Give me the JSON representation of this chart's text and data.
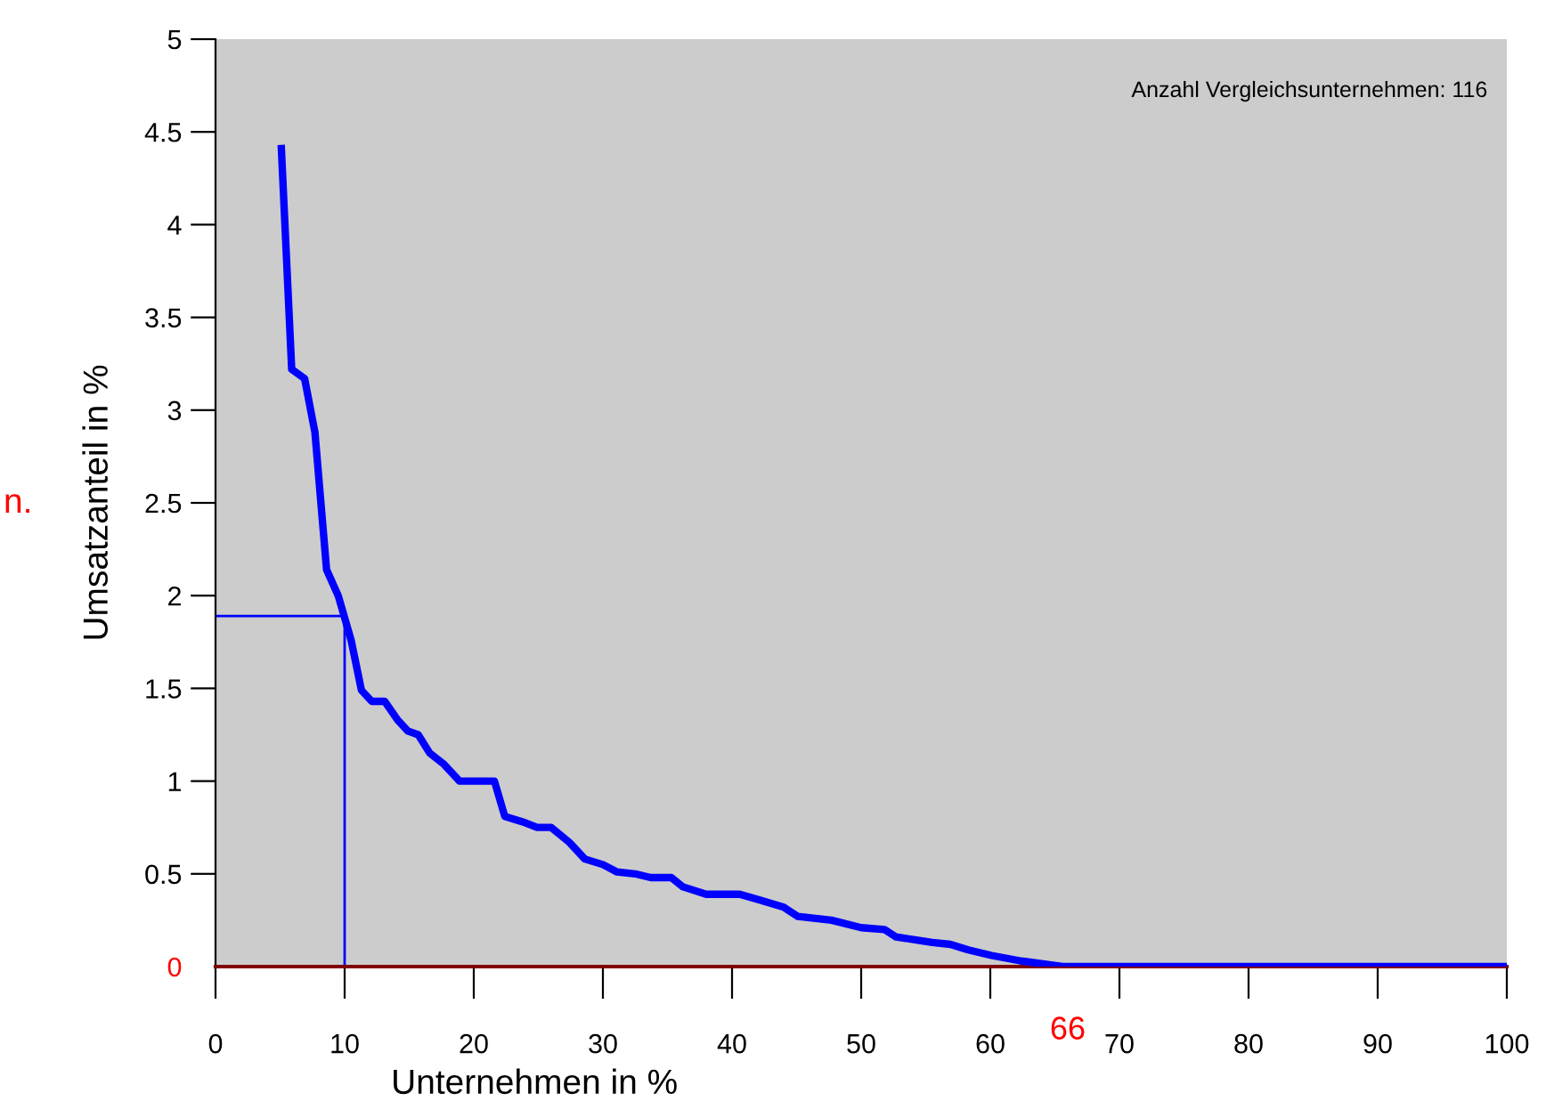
{
  "chart_data": {
    "type": "line",
    "xlabel": "Unternehmen in %",
    "ylabel": "Umsatzanteil in %",
    "annotations": [
      "Anzahl Vergleichsunternehmen: 116",
      "n.",
      {
        "text": "66",
        "x": 66,
        "y": 0
      }
    ],
    "series": [
      {
        "color": "#0000ff",
        "x": [
          5.1,
          5.9,
          6.9,
          7.7,
          8.6,
          9.5,
          10.0,
          10.5,
          11.3,
          12.1,
          13.1,
          14.1,
          14.9,
          15.7,
          16.6,
          17.7,
          18.9,
          21.6,
          22.4,
          23.8,
          24.9,
          26.0,
          27.4,
          28.6,
          30.0,
          31.1,
          32.5,
          33.7,
          35.3,
          36.2,
          38.0,
          40.6,
          42.1,
          44.0,
          45.1,
          47.7,
          50.0,
          51.8,
          52.7,
          54.6,
          55.5,
          56.9,
          58.3,
          60.1,
          62.4,
          65.6,
          100
        ],
        "values": [
          4.41,
          3.22,
          3.17,
          2.88,
          2.14,
          2.0,
          1.88,
          1.76,
          1.49,
          1.43,
          1.43,
          1.33,
          1.27,
          1.25,
          1.15,
          1.09,
          1.0,
          1.0,
          0.81,
          0.78,
          0.75,
          0.75,
          0.67,
          0.58,
          0.55,
          0.51,
          0.5,
          0.48,
          0.48,
          0.43,
          0.39,
          0.39,
          0.36,
          0.32,
          0.27,
          0.25,
          0.21,
          0.2,
          0.16,
          0.14,
          0.13,
          0.12,
          0.09,
          0.06,
          0.03,
          0.0,
          0.0
        ]
      }
    ],
    "ref_lines": [
      {
        "axis": "x",
        "value": 10,
        "color": "#0000ff"
      },
      {
        "axis": "y",
        "value": 1.89,
        "color": "#0000ff"
      }
    ],
    "xlim": [
      0,
      100
    ],
    "xticks": [
      0,
      10,
      20,
      30,
      40,
      50,
      60,
      70,
      80,
      90,
      100
    ],
    "ylim": [
      0,
      5
    ],
    "yticks": [
      0,
      0.5,
      1,
      1.5,
      2,
      2.5,
      3,
      3.5,
      4,
      4.5,
      5
    ],
    "grid": false
  }
}
